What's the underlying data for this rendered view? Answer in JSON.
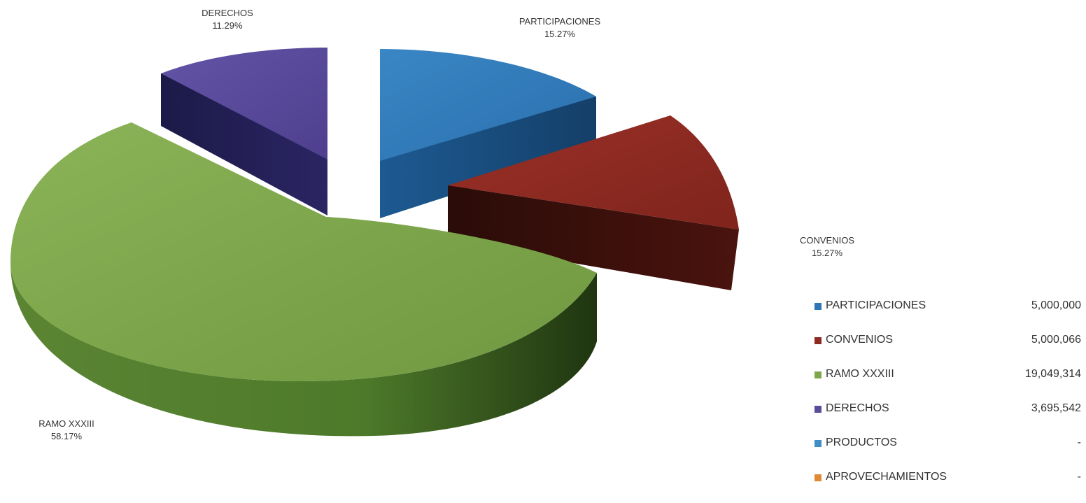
{
  "chart_data": {
    "type": "pie",
    "style": "3d-exploded",
    "slices": [
      {
        "name": "PARTICIPACIONES",
        "percent_label": "15.27%",
        "color": "#2e77b6"
      },
      {
        "name": "CONVENIOS",
        "percent_label": "15.27%",
        "color": "#8e2a22"
      },
      {
        "name": "RAMO XXXIII",
        "percent_label": "58.17%",
        "color": "#7fa64c"
      },
      {
        "name": "DERECHOS",
        "percent_label": "11.29%",
        "color": "#5b4b9c"
      }
    ],
    "legend": [
      {
        "label": "PARTICIPACIONES",
        "value": "5,000,000",
        "color": "#2e77b6"
      },
      {
        "label": "CONVENIOS",
        "value": "5,000,066",
        "color": "#8e2a22"
      },
      {
        "label": "RAMO XXXIII",
        "value": "19,049,314",
        "color": "#7fa64c"
      },
      {
        "label": "DERECHOS",
        "value": "3,695,542",
        "color": "#5b4b9c"
      },
      {
        "label": "PRODUCTOS",
        "value": "-",
        "color": "#3f8fc4"
      },
      {
        "label": "APROVECHAMIENTOS",
        "value": "-",
        "color": "#e08a35"
      }
    ],
    "legend_position": "right"
  }
}
